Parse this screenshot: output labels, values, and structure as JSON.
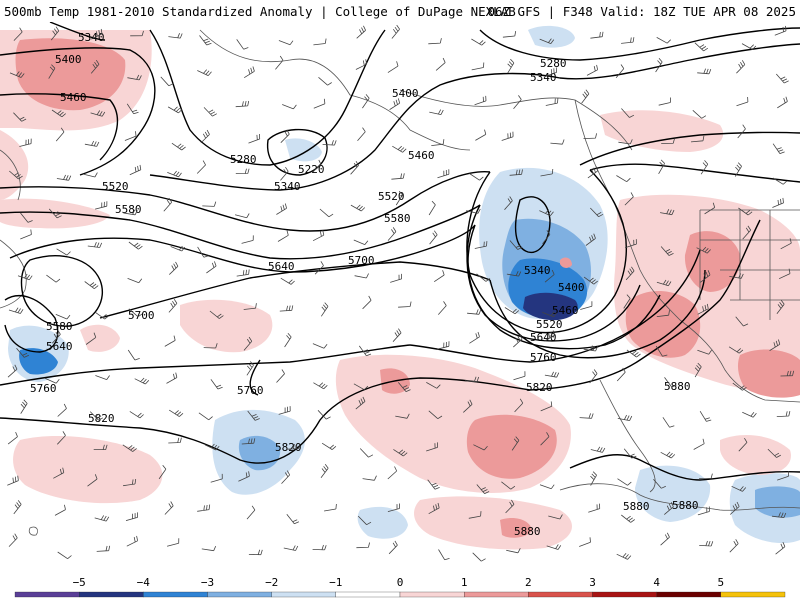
{
  "header": {
    "title_left": "500mb Temp 1981-2010 Standardized Anomaly | College of DuPage NEXLAB",
    "title_right": "06Z GFS | F348 Valid: 18Z TUE APR 08 2025"
  },
  "colors": {
    "neg5": "#5a3f97",
    "neg4": "#24357f",
    "neg3": "#2f83d4",
    "neg2": "#7fb0e1",
    "neg1": "#cde0f2",
    "zero": "#ffffff",
    "pos1": "#f8d5d5",
    "pos2": "#ec9a9a",
    "pos3": "#d9534c",
    "pos4": "#a81414",
    "pos5": "#6a0000",
    "pos6": "#f5c20b"
  },
  "colorbar": {
    "ticks": [
      "−5",
      "−4",
      "−3",
      "−2",
      "−1",
      "0",
      "1",
      "2",
      "3",
      "4",
      "5"
    ]
  },
  "contour_labels": [
    "5340",
    "5400",
    "5460",
    "5280",
    "5220",
    "5340",
    "5520",
    "5580",
    "5640",
    "5700",
    "5580",
    "5640",
    "5760",
    "5700",
    "5760",
    "5820",
    "5820",
    "5400",
    "5460",
    "5520",
    "5580",
    "5280",
    "5340",
    "5340",
    "5400",
    "5460",
    "5520",
    "5640",
    "5760",
    "5820",
    "5880",
    "5880",
    "5880",
    "5880"
  ]
}
